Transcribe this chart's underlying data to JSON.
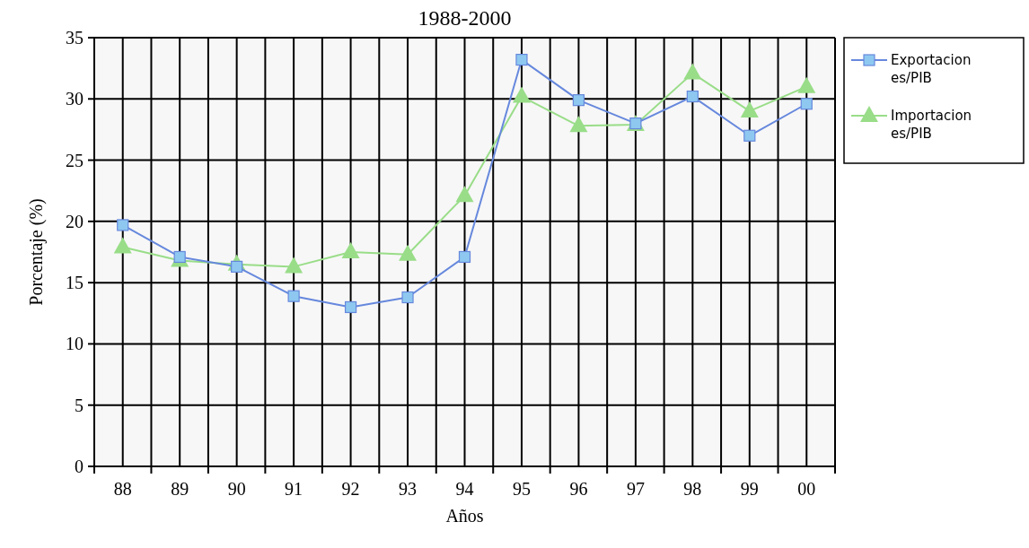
{
  "chart_data": {
    "type": "line",
    "title": "1988-2000",
    "xlabel": "Años",
    "ylabel": "Porcentaje (%)",
    "categories": [
      "88",
      "89",
      "90",
      "91",
      "92",
      "93",
      "94",
      "95",
      "96",
      "97",
      "98",
      "99",
      "00"
    ],
    "series": [
      {
        "name": "Exportaciones/PIB",
        "color": "#6688dd",
        "marker": "square",
        "values": [
          19.7,
          17.1,
          16.3,
          13.9,
          13.0,
          13.8,
          17.1,
          33.2,
          29.9,
          28.0,
          30.2,
          27.0,
          29.6
        ]
      },
      {
        "name": "Importaciones/PIB",
        "color": "#99dd88",
        "marker": "triangle",
        "values": [
          17.9,
          16.8,
          16.5,
          16.3,
          17.5,
          17.3,
          22.1,
          30.2,
          27.8,
          27.9,
          32.1,
          29.0,
          31.0
        ]
      }
    ],
    "ylim": [
      0,
      35
    ],
    "yticks": [
      0,
      5,
      10,
      15,
      20,
      25,
      30,
      35
    ],
    "grid": true,
    "legend": "right"
  }
}
